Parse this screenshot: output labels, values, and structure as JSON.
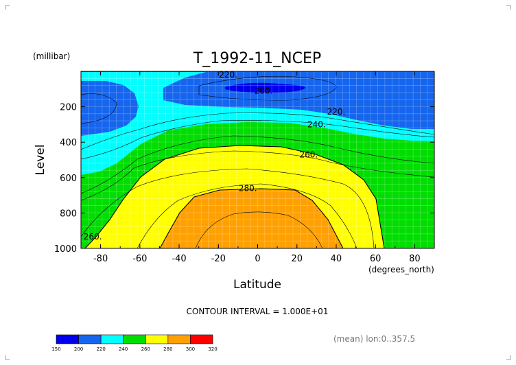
{
  "chart_data": {
    "type": "heatmap",
    "title": "T_1992-11_NCEP",
    "xlabel": "Latitude",
    "ylabel": "Level",
    "x_units": "(degrees_north)",
    "y_units": "(millibar)",
    "xlim": [
      -90,
      90
    ],
    "ylim": [
      1000,
      0
    ],
    "x_ticks": [
      -80,
      -60,
      -40,
      -20,
      0,
      20,
      40,
      60,
      80
    ],
    "y_ticks": [
      200,
      400,
      600,
      800,
      1000
    ],
    "contour_interval_text": "CONTOUR INTERVAL = 1.000E+01",
    "mean_text": "(mean) lon:0..357.5",
    "contour_labels": [
      {
        "text": "220.",
        "x": -15,
        "y": 20
      },
      {
        "text": "200.",
        "x": 3,
        "y": 110
      },
      {
        "text": "220.",
        "x": 40,
        "y": 228
      },
      {
        "text": "240.",
        "x": 30,
        "y": 300
      },
      {
        "text": "260.",
        "x": 26,
        "y": 470
      },
      {
        "text": "280.",
        "x": -5,
        "y": 660
      },
      {
        "text": "260.",
        "x": -84,
        "y": 935
      }
    ],
    "colorbar": {
      "levels": [
        150,
        200,
        220,
        240,
        260,
        280,
        300,
        320
      ],
      "colors": [
        "#0000ee",
        "#1565ee",
        "#00ffff",
        "#00dd00",
        "#ffff00",
        "#ffa000",
        "#ff0000"
      ]
    }
  }
}
